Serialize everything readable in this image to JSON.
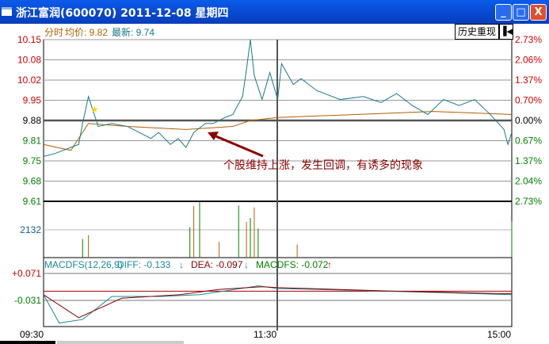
{
  "window": {
    "title": "浙江富润(600070)  2011-12-08  星期四",
    "minimize": "_",
    "maximize": "□",
    "close": "X"
  },
  "header": {
    "mode": "分时",
    "avg_label": "均价: 9.82",
    "latest_label": "最新: 9.74",
    "history_button": "历史重现",
    "back_icon": "skip-back-icon"
  },
  "colors": {
    "up": "#d00000",
    "down": "#008000",
    "price_line": "#1a7a8a",
    "avg_line": "#b06000",
    "annotation": "#8b0000",
    "macd_diff": "#1a8a9a",
    "macd_dea": "#8b0000"
  },
  "annotation": {
    "text": "个股维持上涨，发生回调，有诱多的现象"
  },
  "macd": {
    "name": "MACDFS(12,26,9)",
    "diff": "DIFF: -0.133",
    "dea": "DEA: -0.097",
    "macdfs": "MACDFS: -0.072",
    "tick_top": "+0.071",
    "tick_bottom": "-0.031"
  },
  "chart_data": {
    "type": "line",
    "price_ticks": [
      "10.15",
      "10.08",
      "10.02",
      "9.95",
      "9.88",
      "9.81",
      "9.75",
      "9.68",
      "9.61"
    ],
    "pct_ticks": [
      "2.73%",
      "2.06%",
      "1.37%",
      "0.70%",
      "0.00%",
      "0.67%",
      "1.37%",
      "2.04%",
      "2.73%"
    ],
    "ylim": [
      9.61,
      10.15
    ],
    "prev_close": 9.88,
    "x_ticks": [
      "09:30",
      "11:30",
      "15:00"
    ],
    "volume_tick": "2132",
    "price": [
      [
        "09:30",
        9.76
      ],
      [
        "09:36",
        9.77
      ],
      [
        "09:44",
        9.79
      ],
      [
        "09:48",
        9.8
      ],
      [
        "09:50",
        9.87
      ],
      [
        "09:53",
        9.96
      ],
      [
        "09:56",
        9.9
      ],
      [
        "09:58",
        9.86
      ],
      [
        "10:05",
        9.87
      ],
      [
        "10:13",
        9.86
      ],
      [
        "10:19",
        9.84
      ],
      [
        "10:25",
        9.82
      ],
      [
        "10:29",
        9.84
      ],
      [
        "10:35",
        9.8
      ],
      [
        "10:39",
        9.82
      ],
      [
        "10:43",
        9.79
      ],
      [
        "10:47",
        9.84
      ],
      [
        "10:53",
        9.87
      ],
      [
        "10:57",
        9.87
      ],
      [
        "11:03",
        9.89
      ],
      [
        "11:07",
        9.9
      ],
      [
        "11:12",
        9.96
      ],
      [
        "11:14",
        10.05
      ],
      [
        "11:16",
        10.15
      ],
      [
        "11:18",
        10.03
      ],
      [
        "11:22",
        9.95
      ],
      [
        "11:26",
        10.04
      ],
      [
        "11:30",
        9.95
      ],
      [
        "13:02",
        10.07
      ],
      [
        "13:08",
        10.0
      ],
      [
        "13:12",
        10.02
      ],
      [
        "13:20",
        9.98
      ],
      [
        "13:32",
        9.95
      ],
      [
        "13:44",
        9.96
      ],
      [
        "13:53",
        9.94
      ],
      [
        "14:01",
        9.97
      ],
      [
        "14:09",
        9.93
      ],
      [
        "14:17",
        9.9
      ],
      [
        "14:25",
        9.95
      ],
      [
        "14:33",
        9.93
      ],
      [
        "14:41",
        9.95
      ],
      [
        "14:49",
        9.9
      ],
      [
        "14:56",
        9.85
      ],
      [
        "14:58",
        9.8
      ],
      [
        "15:00",
        9.84
      ]
    ],
    "avg": [
      [
        "09:30",
        9.8
      ],
      [
        "09:44",
        9.78
      ],
      [
        "09:53",
        9.87
      ],
      [
        "10:13",
        9.86
      ],
      [
        "10:43",
        9.85
      ],
      [
        "11:07",
        9.86
      ],
      [
        "11:16",
        9.88
      ],
      [
        "11:30",
        9.89
      ],
      [
        "13:40",
        9.9
      ],
      [
        "14:20",
        9.91
      ],
      [
        "15:00",
        9.9
      ]
    ],
    "volume_ylim": [
      0,
      4264
    ],
    "volume": [
      [
        "09:50",
        1400
      ],
      [
        "09:53",
        1700
      ],
      [
        "10:45",
        2300
      ],
      [
        "10:47",
        3900
      ],
      [
        "10:50",
        4200
      ],
      [
        "11:00",
        1200
      ],
      [
        "11:10",
        3950
      ],
      [
        "11:14",
        2700
      ],
      [
        "11:16",
        3000
      ],
      [
        "11:18",
        3800
      ],
      [
        "11:20",
        2200
      ],
      [
        "13:10",
        1000
      ],
      [
        "15:00",
        2750
      ]
    ],
    "macd_ylim": [
      -0.2,
      0.1
    ],
    "diff": [
      [
        "09:30",
        -0.02
      ],
      [
        "09:38",
        -0.18
      ],
      [
        "09:50",
        -0.16
      ],
      [
        "10:05",
        -0.03
      ],
      [
        "10:30",
        -0.03
      ],
      [
        "10:50",
        -0.02
      ],
      [
        "11:20",
        0.03
      ],
      [
        "11:30",
        0.015
      ],
      [
        "13:20",
        0.01
      ],
      [
        "14:30",
        -0.01
      ],
      [
        "15:00",
        -0.02
      ]
    ],
    "dea": [
      [
        "09:30",
        -0.02
      ],
      [
        "09:48",
        -0.15
      ],
      [
        "10:10",
        -0.04
      ],
      [
        "10:40",
        -0.02
      ],
      [
        "11:00",
        0.01
      ],
      [
        "11:22",
        0.025
      ],
      [
        "11:30",
        0.02
      ],
      [
        "14:00",
        0.0
      ],
      [
        "15:00",
        -0.015
      ]
    ]
  }
}
